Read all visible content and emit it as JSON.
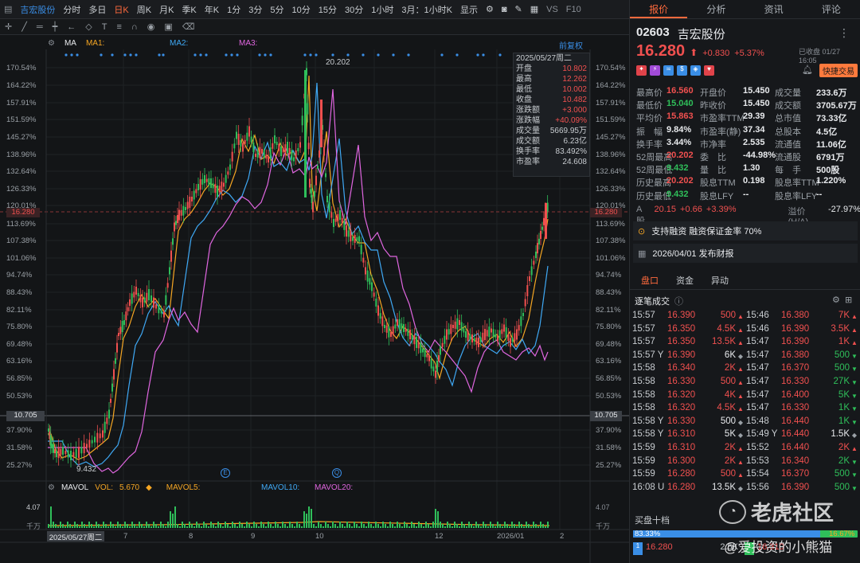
{
  "topbar": {
    "title": "吉宏股份",
    "periods": [
      "分时",
      "多日",
      "日K",
      "周K",
      "月K",
      "季K",
      "年K",
      "1分",
      "3分",
      "5分",
      "10分",
      "15分",
      "30分",
      "1小时",
      "3月：1小时K"
    ],
    "active_period": "日K",
    "display": "显示",
    "vs": "VS",
    "f10": "F10"
  },
  "chart": {
    "indicator": "MA",
    "ma1": "MA1:",
    "ma2": "MA2:",
    "ma3": "MA3:",
    "adjust": "前复权",
    "price_labels": [
      "170.54%",
      "164.22%",
      "157.91%",
      "151.59%",
      "145.27%",
      "138.96%",
      "132.64%",
      "126.33%",
      "120.01%",
      "113.69%",
      "107.38%",
      "101.06%",
      "94.74%",
      "88.43%",
      "82.11%",
      "75.80%",
      "69.48%",
      "63.16%",
      "56.85%",
      "50.53%",
      "37.90%",
      "31.58%",
      "25.27%"
    ],
    "current_price_tag": "16.280",
    "base_price_tag": "10.705",
    "high_mark": "20.202",
    "low_mark": "9.432",
    "event1": "E",
    "event2": "Q",
    "dates": [
      "2025/05/27周二",
      "7",
      "8",
      "9",
      "10",
      "12",
      "2026/01",
      "2"
    ],
    "tooltip": {
      "date": "2025/05/27周二",
      "rows": [
        [
          "开盘",
          "10.802"
        ],
        [
          "最高",
          "12.262"
        ],
        [
          "最低",
          "10.002"
        ],
        [
          "收盘",
          "10.482"
        ],
        [
          "涨跌额",
          "+3.000"
        ],
        [
          "涨跌幅",
          "+40.09%"
        ],
        [
          "成交量",
          "5669.95万"
        ],
        [
          "成交额",
          "6.23亿"
        ],
        [
          "换手率",
          "83.492%"
        ],
        [
          "市盈率",
          "24.608"
        ]
      ]
    },
    "vol": {
      "name": "MAVOL",
      "vol_label": "VOL:",
      "vol_value": "5.670",
      "mavol5": "MAVOL5:",
      "mavol10": "MAVOL10:",
      "mavol20": "MAVOL20:",
      "axis_top": "4.07",
      "axis_unit": "千万"
    }
  },
  "right": {
    "tabs": [
      "报价",
      "分析",
      "资讯",
      "评论"
    ],
    "code": "02603",
    "name": "吉宏股份",
    "price": "16.280",
    "change": "+0.830",
    "pct": "+5.37%",
    "status": "已收盘 01/27 16:05",
    "quick_trade": "快捷交易",
    "stats": [
      [
        "最高价",
        "16.560",
        "开盘价",
        "15.450",
        "成交量",
        "233.6万"
      ],
      [
        "最低价",
        "15.040",
        "昨收价",
        "15.450",
        "成交额",
        "3705.67万"
      ],
      [
        "平均价",
        "15.863",
        "市盈率TTM",
        "29.39",
        "总市值",
        "73.33亿"
      ],
      [
        "振　幅",
        "9.84%",
        "市盈率(静)",
        "37.34",
        "总股本",
        "4.5亿"
      ],
      [
        "换手率",
        "3.44%",
        "市净率",
        "2.535",
        "流通值",
        "11.06亿"
      ],
      [
        "52周最高",
        "20.202",
        "委　比",
        "-44.98%",
        "流通股",
        "6791万"
      ],
      [
        "52周最低",
        "9.432",
        "量　比",
        "1.30",
        "每　手",
        "500股"
      ],
      [
        "历史最高",
        "20.202",
        "股息TTM",
        "0.198",
        "股息率TTM",
        "1.220%"
      ],
      [
        "历史最低",
        "9.432",
        "股息LFY",
        "--",
        "股息率LFY",
        "--"
      ]
    ],
    "ashare": {
      "label": "A股",
      "price": "20.15",
      "chg": "+0.66",
      "pct": "+3.39%",
      "premium_label": "溢价(H/A)",
      "premium": "-27.97%"
    },
    "margin": "支持融资 融资保证金率 70%",
    "report": "2026/04/01  发布财报",
    "subtabs": [
      "盘口",
      "资金",
      "异动"
    ],
    "ticks_title": "逐笔成交",
    "ticks_left": [
      [
        "15:57",
        "16.390",
        "500",
        "up"
      ],
      [
        "15:57",
        "16.350",
        "4.5K",
        "up"
      ],
      [
        "15:57",
        "16.350",
        "13.5K",
        "up"
      ],
      [
        "15:57 Y",
        "16.390",
        "6K",
        "dot"
      ],
      [
        "15:58",
        "16.340",
        "2K",
        "up"
      ],
      [
        "15:58",
        "16.330",
        "500",
        "up"
      ],
      [
        "15:58",
        "16.320",
        "4K",
        "up"
      ],
      [
        "15:58",
        "16.320",
        "4.5K",
        "up"
      ],
      [
        "15:58 Y",
        "16.330",
        "500",
        "dot"
      ],
      [
        "15:58 Y",
        "16.310",
        "5K",
        "dot"
      ],
      [
        "15:59",
        "16.310",
        "2K",
        "up"
      ],
      [
        "15:59",
        "16.300",
        "2K",
        "up"
      ],
      [
        "15:59",
        "16.280",
        "500",
        "up"
      ],
      [
        "16:08 U",
        "16.280",
        "13.5K",
        "dot"
      ]
    ],
    "ticks_right": [
      [
        "15:46",
        "16.380",
        "7K",
        "up"
      ],
      [
        "15:46",
        "16.390",
        "3.5K",
        "up"
      ],
      [
        "15:47",
        "16.390",
        "1K",
        "up"
      ],
      [
        "15:47",
        "16.380",
        "500",
        "down"
      ],
      [
        "15:47",
        "16.370",
        "500",
        "down"
      ],
      [
        "15:47",
        "16.330",
        "27K",
        "down"
      ],
      [
        "15:47",
        "16.400",
        "5K",
        "down"
      ],
      [
        "15:47",
        "16.330",
        "1K",
        "down"
      ],
      [
        "15:48",
        "16.440",
        "1K",
        "down"
      ],
      [
        "15:49 Y",
        "16.440",
        "1.5K",
        "dot"
      ],
      [
        "15:52",
        "16.440",
        "2K",
        "up"
      ],
      [
        "15:53",
        "16.340",
        "2K",
        "down"
      ],
      [
        "15:54",
        "16.370",
        "500",
        "down"
      ],
      [
        "15:56",
        "16.390",
        "500",
        "down"
      ]
    ],
    "book_title": "买盘十档",
    "book_buy": "83.33%",
    "book_sell": "16.67%",
    "book_rows": [
      [
        "1",
        "16.280",
        "2.5K",
        "1",
        "16.310"
      ]
    ],
    "watermark1": "老虎社区",
    "watermark2": "@爱投资的小熊猫"
  },
  "colors": {
    "up": "#f0504f",
    "down": "#2fbf5a",
    "ma1": "#f5a623",
    "ma2": "#3fa9f5",
    "ma3": "#e066e0",
    "accent": "#ff6a3d"
  }
}
